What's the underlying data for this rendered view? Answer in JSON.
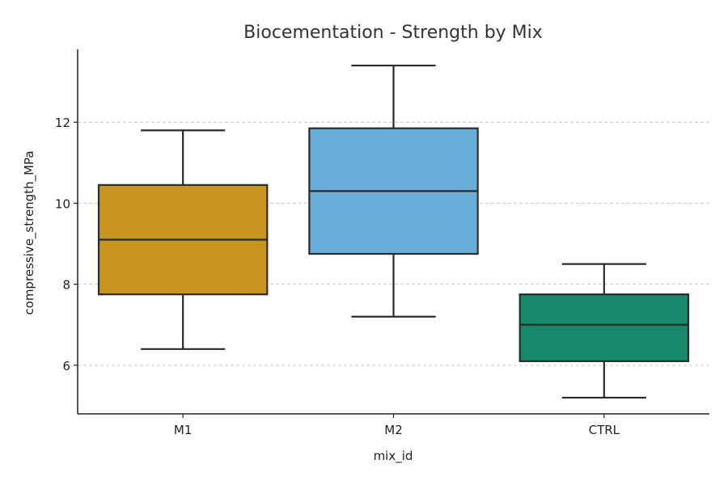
{
  "chart_data": {
    "type": "box",
    "title": "Biocementation - Strength by Mix",
    "xlabel": "mix_id",
    "ylabel": "compressive_strength_MPa",
    "ylim": [
      4.8,
      13.8
    ],
    "yticks": [
      6,
      8,
      10,
      12
    ],
    "grid": "y-dashed",
    "categories": [
      "M1",
      "M2",
      "CTRL"
    ],
    "boxes": [
      {
        "category": "M1",
        "whisker_low": 6.4,
        "q1": 7.75,
        "median": 9.1,
        "q3": 10.45,
        "whisker_high": 11.8,
        "color": "#C8961E"
      },
      {
        "category": "M2",
        "whisker_low": 7.2,
        "q1": 8.75,
        "median": 10.3,
        "q3": 11.85,
        "whisker_high": 13.4,
        "color": "#67AED8"
      },
      {
        "category": "CTRL",
        "whisker_low": 5.2,
        "q1": 6.1,
        "median": 7.0,
        "q3": 7.75,
        "whisker_high": 8.5,
        "color": "#168A6A"
      }
    ]
  }
}
